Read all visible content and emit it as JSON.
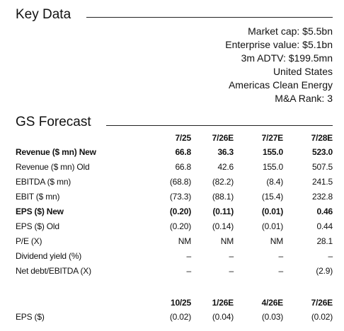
{
  "key_data": {
    "title": "Key Data",
    "lines": [
      "Market cap: $5.5bn",
      "Enterprise value: $5.1bn",
      "3m ADTV: $199.5mn",
      "United States",
      "Americas Clean Energy",
      "M&A Rank: 3"
    ]
  },
  "forecast": {
    "title": "GS Forecast",
    "columns": [
      "7/25",
      "7/26E",
      "7/27E",
      "7/28E"
    ],
    "rows": [
      [
        "Revenue ($ mn) New",
        "66.8",
        "36.3",
        "155.0",
        "523.0"
      ],
      [
        "Revenue ($ mn) Old",
        "66.8",
        "42.6",
        "155.0",
        "507.5"
      ],
      [
        "EBITDA ($ mn)",
        "(68.8)",
        "(82.2)",
        "(8.4)",
        "241.5"
      ],
      [
        "EBIT ($ mn)",
        "(73.3)",
        "(88.1)",
        "(15.4)",
        "232.8"
      ],
      [
        "EPS ($) New",
        "(0.20)",
        "(0.11)",
        "(0.01)",
        "0.46"
      ],
      [
        "EPS ($) Old",
        "(0.20)",
        "(0.14)",
        "(0.01)",
        "0.44"
      ],
      [
        "P/E (X)",
        "NM",
        "NM",
        "NM",
        "28.1"
      ],
      [
        "Dividend yield (%)",
        "–",
        "–",
        "–",
        "–"
      ],
      [
        "Net debt/EBITDA (X)",
        "–",
        "–",
        "–",
        "(2.9)"
      ]
    ]
  },
  "quarterly": {
    "columns": [
      "10/25",
      "1/26E",
      "4/26E",
      "7/26E"
    ],
    "rows": [
      [
        "EPS ($)",
        "(0.02)",
        "(0.04)",
        "(0.03)",
        "(0.02)"
      ]
    ]
  }
}
